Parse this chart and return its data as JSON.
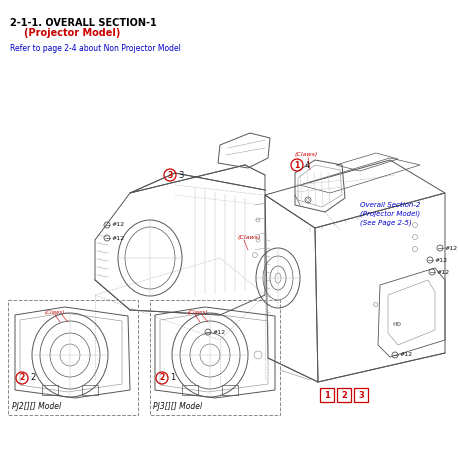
{
  "title_line1": "2-1-1. OVERALL SECTION-1",
  "title_line2": "(Projector Model)",
  "subtitle": "Refer to page 2-4 about Non Projector Model",
  "title_color": "#000000",
  "title_sub_color": "#cc0000",
  "subtitle_color": "#0000cc",
  "section2_label": "Overall Section-2\n(Projector Model)\n(See Page 2-5)",
  "section2_color": "#0000cc",
  "label_pj2": "PJ2[][] Model",
  "label_pj3": "PJ3[][] Model",
  "bg_color": "#ffffff",
  "red": "#cc0000",
  "black": "#111111",
  "darkgray": "#555555",
  "midgray": "#888888",
  "lightgray": "#bbbbbb",
  "blue": "#0000cc"
}
